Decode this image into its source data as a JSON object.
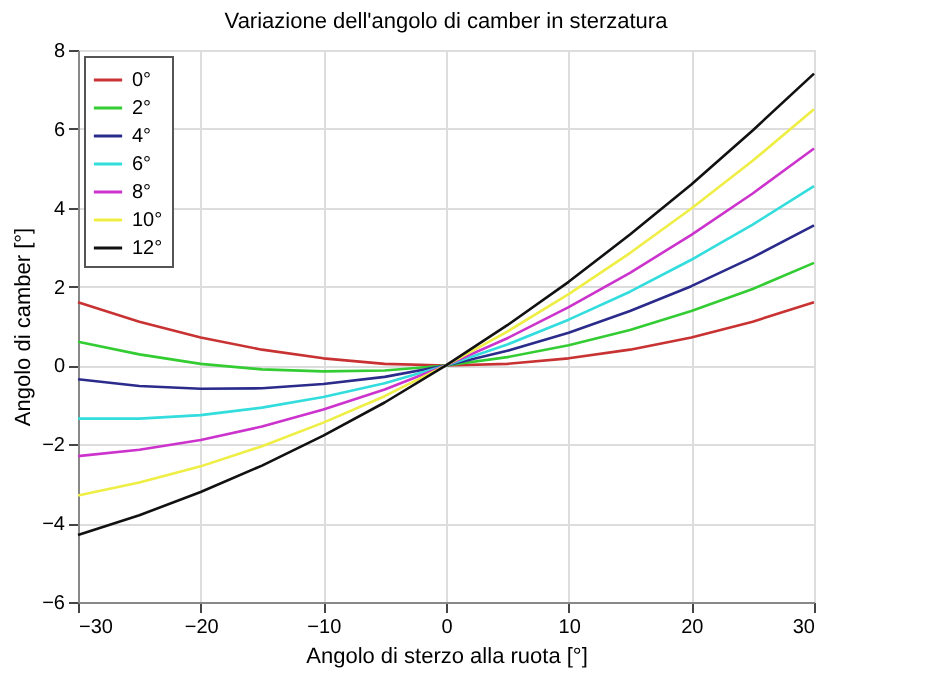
{
  "chart_data": {
    "type": "line",
    "title": "Variazione dell'angolo di camber in sterzatura",
    "xlabel": "Angolo di sterzo alla ruota [°]",
    "ylabel": "Angolo di camber [°]",
    "x": [
      -30,
      -25,
      -20,
      -15,
      -10,
      -5,
      0,
      5,
      10,
      15,
      20,
      25,
      30
    ],
    "series": [
      {
        "name": "0°",
        "color": "#c83232",
        "values": [
          1.6,
          1.11,
          0.71,
          0.4,
          0.18,
          0.04,
          0,
          0.04,
          0.18,
          0.4,
          0.71,
          1.11,
          1.6
        ]
      },
      {
        "name": "2°",
        "color": "#33cc33",
        "values": [
          0.6,
          0.28,
          0.04,
          -0.1,
          -0.15,
          -0.13,
          0,
          0.21,
          0.51,
          0.9,
          1.38,
          1.94,
          2.6
        ]
      },
      {
        "name": "4°",
        "color": "#2b2b8c",
        "values": [
          -0.35,
          -0.52,
          -0.59,
          -0.58,
          -0.47,
          -0.29,
          0,
          0.37,
          0.83,
          1.38,
          2.01,
          2.74,
          3.55
        ]
      },
      {
        "name": "6°",
        "color": "#33dddd",
        "values": [
          -1.35,
          -1.35,
          -1.26,
          -1.07,
          -0.8,
          -0.45,
          0,
          0.53,
          1.16,
          1.87,
          2.68,
          3.57,
          4.55
        ]
      },
      {
        "name": "8°",
        "color": "#cc33cc",
        "values": [
          -2.3,
          -2.14,
          -1.89,
          -1.55,
          -1.12,
          -0.61,
          0,
          0.69,
          1.48,
          2.35,
          3.31,
          4.36,
          5.5
        ]
      },
      {
        "name": "10°",
        "color": "#eeee44",
        "values": [
          -3.3,
          -2.97,
          -2.56,
          -2.05,
          -1.45,
          -0.78,
          0,
          0.86,
          1.81,
          2.85,
          3.98,
          5.19,
          6.5
        ]
      },
      {
        "name": "12°",
        "color": "#111111",
        "values": [
          -4.3,
          -3.8,
          -3.21,
          -2.54,
          -1.78,
          -0.94,
          0,
          1.02,
          2.12,
          3.32,
          4.59,
          5.96,
          7.4
        ]
      }
    ],
    "xlim": [
      -30,
      30
    ],
    "xticks": [
      -30,
      -20,
      -10,
      0,
      10,
      20,
      30
    ],
    "ylim": [
      -6,
      8
    ],
    "yticks": [
      -6,
      -4,
      -2,
      0,
      2,
      4,
      6,
      8
    ],
    "grid": true,
    "legend": "top left",
    "marker": "none",
    "line_style": "solid"
  }
}
